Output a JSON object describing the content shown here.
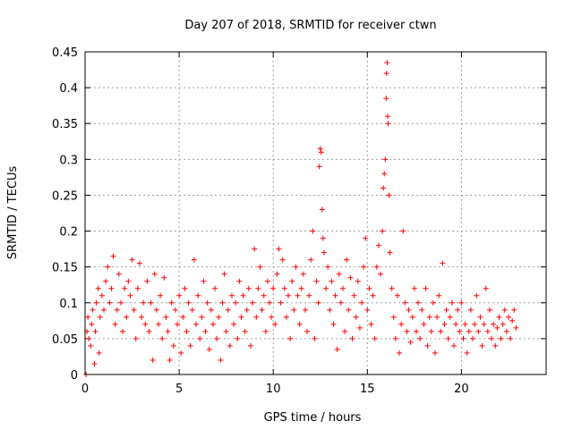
{
  "chart_data": {
    "type": "scatter",
    "title": "Day 207 of 2018, SRMTID for receiver ctwn",
    "xlabel": "GPS time / hours",
    "ylabel": "SRMTID / TECUs",
    "xlim": [
      0,
      24.5
    ],
    "ylim": [
      0,
      0.45
    ],
    "xticks": [
      0,
      5,
      10,
      15,
      20
    ],
    "xtick_labels": [
      "0",
      "5",
      "10",
      "15",
      "20"
    ],
    "yticks": [
      0,
      0.05,
      0.1,
      0.15,
      0.2,
      0.25,
      0.3,
      0.35,
      0.4,
      0.45
    ],
    "ytick_labels": [
      "0",
      "0.05",
      "0.1",
      "0.15",
      "0.2",
      "0.25",
      "0.3",
      "0.35",
      "0.4",
      "0.45"
    ],
    "grid": true,
    "marker": "plus",
    "color": "#ff0000",
    "series": [
      {
        "name": "SRMTID",
        "points": [
          [
            0.05,
            0.0
          ],
          [
            0.1,
            0.06
          ],
          [
            0.15,
            0.08
          ],
          [
            0.2,
            0.05
          ],
          [
            0.3,
            0.04
          ],
          [
            0.35,
            0.07
          ],
          [
            0.4,
            0.09
          ],
          [
            0.5,
            0.015
          ],
          [
            0.55,
            0.06
          ],
          [
            0.6,
            0.1
          ],
          [
            0.7,
            0.12
          ],
          [
            0.75,
            0.03
          ],
          [
            0.8,
            0.08
          ],
          [
            0.9,
            0.11
          ],
          [
            1.0,
            0.09
          ],
          [
            1.1,
            0.13
          ],
          [
            1.2,
            0.15
          ],
          [
            1.3,
            0.1
          ],
          [
            1.4,
            0.12
          ],
          [
            1.5,
            0.165
          ],
          [
            1.6,
            0.07
          ],
          [
            1.7,
            0.09
          ],
          [
            1.8,
            0.14
          ],
          [
            1.9,
            0.1
          ],
          [
            2.0,
            0.06
          ],
          [
            2.1,
            0.12
          ],
          [
            2.2,
            0.08
          ],
          [
            2.3,
            0.13
          ],
          [
            2.4,
            0.11
          ],
          [
            2.5,
            0.16
          ],
          [
            2.6,
            0.09
          ],
          [
            2.7,
            0.05
          ],
          [
            2.8,
            0.12
          ],
          [
            2.9,
            0.155
          ],
          [
            3.0,
            0.08
          ],
          [
            3.1,
            0.1
          ],
          [
            3.2,
            0.07
          ],
          [
            3.3,
            0.13
          ],
          [
            3.4,
            0.06
          ],
          [
            3.5,
            0.1
          ],
          [
            3.6,
            0.02
          ],
          [
            3.7,
            0.14
          ],
          [
            3.8,
            0.09
          ],
          [
            3.9,
            0.07
          ],
          [
            4.0,
            0.11
          ],
          [
            4.1,
            0.05
          ],
          [
            4.2,
            0.135
          ],
          [
            4.3,
            0.08
          ],
          [
            4.4,
            0.06
          ],
          [
            4.5,
            0.02
          ],
          [
            4.6,
            0.1
          ],
          [
            4.7,
            0.04
          ],
          [
            4.8,
            0.09
          ],
          [
            4.9,
            0.07
          ],
          [
            5.0,
            0.11
          ],
          [
            5.1,
            0.03
          ],
          [
            5.2,
            0.08
          ],
          [
            5.3,
            0.12
          ],
          [
            5.4,
            0.06
          ],
          [
            5.5,
            0.1
          ],
          [
            5.6,
            0.04
          ],
          [
            5.7,
            0.09
          ],
          [
            5.8,
            0.16
          ],
          [
            5.9,
            0.07
          ],
          [
            6.0,
            0.11
          ],
          [
            6.1,
            0.05
          ],
          [
            6.2,
            0.08
          ],
          [
            6.3,
            0.13
          ],
          [
            6.4,
            0.06
          ],
          [
            6.5,
            0.1
          ],
          [
            6.6,
            0.035
          ],
          [
            6.7,
            0.09
          ],
          [
            6.8,
            0.07
          ],
          [
            6.9,
            0.12
          ],
          [
            7.0,
            0.05
          ],
          [
            7.1,
            0.08
          ],
          [
            7.2,
            0.02
          ],
          [
            7.3,
            0.1
          ],
          [
            7.4,
            0.14
          ],
          [
            7.5,
            0.06
          ],
          [
            7.6,
            0.09
          ],
          [
            7.7,
            0.04
          ],
          [
            7.8,
            0.11
          ],
          [
            7.9,
            0.07
          ],
          [
            8.0,
            0.1
          ],
          [
            8.1,
            0.05
          ],
          [
            8.2,
            0.13
          ],
          [
            8.3,
            0.08
          ],
          [
            8.4,
            0.11
          ],
          [
            8.5,
            0.06
          ],
          [
            8.6,
            0.09
          ],
          [
            8.7,
            0.12
          ],
          [
            8.8,
            0.04
          ],
          [
            8.9,
            0.1
          ],
          [
            9.0,
            0.175
          ],
          [
            9.1,
            0.08
          ],
          [
            9.2,
            0.12
          ],
          [
            9.3,
            0.15
          ],
          [
            9.4,
            0.09
          ],
          [
            9.5,
            0.11
          ],
          [
            9.6,
            0.06
          ],
          [
            9.7,
            0.13
          ],
          [
            9.8,
            0.1
          ],
          [
            9.9,
            0.08
          ],
          [
            10.0,
            0.12
          ],
          [
            10.1,
            0.07
          ],
          [
            10.2,
            0.14
          ],
          [
            10.3,
            0.175
          ],
          [
            10.4,
            0.1
          ],
          [
            10.5,
            0.16
          ],
          [
            10.6,
            0.12
          ],
          [
            10.7,
            0.08
          ],
          [
            10.8,
            0.11
          ],
          [
            10.9,
            0.05
          ],
          [
            11.0,
            0.13
          ],
          [
            11.1,
            0.09
          ],
          [
            11.2,
            0.15
          ],
          [
            11.3,
            0.11
          ],
          [
            11.4,
            0.07
          ],
          [
            11.5,
            0.12
          ],
          [
            11.6,
            0.14
          ],
          [
            11.7,
            0.09
          ],
          [
            11.8,
            0.06
          ],
          [
            11.9,
            0.11
          ],
          [
            12.0,
            0.16
          ],
          [
            12.1,
            0.2
          ],
          [
            12.2,
            0.05
          ],
          [
            12.3,
            0.13
          ],
          [
            12.4,
            0.1
          ],
          [
            12.45,
            0.29
          ],
          [
            12.5,
            0.315
          ],
          [
            12.55,
            0.31
          ],
          [
            12.6,
            0.23
          ],
          [
            12.65,
            0.19
          ],
          [
            12.7,
            0.17
          ],
          [
            12.8,
            0.12
          ],
          [
            12.9,
            0.15
          ],
          [
            13.0,
            0.09
          ],
          [
            13.1,
            0.13
          ],
          [
            13.2,
            0.07
          ],
          [
            13.3,
            0.11
          ],
          [
            13.4,
            0.035
          ],
          [
            13.5,
            0.14
          ],
          [
            13.6,
            0.1
          ],
          [
            13.7,
            0.12
          ],
          [
            13.8,
            0.06
          ],
          [
            13.9,
            0.16
          ],
          [
            14.0,
            0.09
          ],
          [
            14.1,
            0.135
          ],
          [
            14.2,
            0.05
          ],
          [
            14.3,
            0.11
          ],
          [
            14.4,
            0.08
          ],
          [
            14.5,
            0.13
          ],
          [
            14.6,
            0.065
          ],
          [
            14.7,
            0.1
          ],
          [
            14.8,
            0.15
          ],
          [
            14.9,
            0.19
          ],
          [
            15.0,
            0.09
          ],
          [
            15.1,
            0.12
          ],
          [
            15.2,
            0.07
          ],
          [
            15.3,
            0.11
          ],
          [
            15.4,
            0.05
          ],
          [
            15.5,
            0.15
          ],
          [
            15.6,
            0.18
          ],
          [
            15.7,
            0.14
          ],
          [
            15.8,
            0.2
          ],
          [
            15.85,
            0.26
          ],
          [
            15.9,
            0.28
          ],
          [
            15.95,
            0.3
          ],
          [
            16.0,
            0.385
          ],
          [
            16.02,
            0.42
          ],
          [
            16.05,
            0.435
          ],
          [
            16.08,
            0.36
          ],
          [
            16.1,
            0.35
          ],
          [
            16.15,
            0.25
          ],
          [
            16.2,
            0.17
          ],
          [
            16.3,
            0.12
          ],
          [
            16.4,
            0.08
          ],
          [
            16.5,
            0.05
          ],
          [
            16.6,
            0.11
          ],
          [
            16.7,
            0.03
          ],
          [
            16.8,
            0.07
          ],
          [
            16.9,
            0.2
          ],
          [
            17.0,
            0.1
          ],
          [
            17.1,
            0.06
          ],
          [
            17.2,
            0.09
          ],
          [
            17.3,
            0.045
          ],
          [
            17.4,
            0.08
          ],
          [
            17.5,
            0.12
          ],
          [
            17.6,
            0.06
          ],
          [
            17.7,
            0.1
          ],
          [
            17.8,
            0.05
          ],
          [
            17.9,
            0.09
          ],
          [
            18.0,
            0.07
          ],
          [
            18.1,
            0.12
          ],
          [
            18.2,
            0.04
          ],
          [
            18.3,
            0.08
          ],
          [
            18.4,
            0.06
          ],
          [
            18.5,
            0.1
          ],
          [
            18.6,
            0.03
          ],
          [
            18.7,
            0.08
          ],
          [
            18.8,
            0.11
          ],
          [
            18.9,
            0.06
          ],
          [
            19.0,
            0.155
          ],
          [
            19.1,
            0.07
          ],
          [
            19.2,
            0.09
          ],
          [
            19.3,
            0.05
          ],
          [
            19.4,
            0.08
          ],
          [
            19.5,
            0.1
          ],
          [
            19.6,
            0.04
          ],
          [
            19.7,
            0.07
          ],
          [
            19.8,
            0.09
          ],
          [
            19.9,
            0.06
          ],
          [
            20.0,
            0.1
          ],
          [
            20.1,
            0.05
          ],
          [
            20.2,
            0.07
          ],
          [
            20.3,
            0.03
          ],
          [
            20.4,
            0.06
          ],
          [
            20.5,
            0.09
          ],
          [
            20.6,
            0.05
          ],
          [
            20.7,
            0.07
          ],
          [
            20.8,
            0.11
          ],
          [
            20.9,
            0.06
          ],
          [
            21.0,
            0.08
          ],
          [
            21.1,
            0.04
          ],
          [
            21.2,
            0.07
          ],
          [
            21.3,
            0.12
          ],
          [
            21.4,
            0.06
          ],
          [
            21.5,
            0.09
          ],
          [
            21.6,
            0.05
          ],
          [
            21.7,
            0.07
          ],
          [
            21.8,
            0.04
          ],
          [
            21.9,
            0.065
          ],
          [
            22.0,
            0.08
          ],
          [
            22.1,
            0.05
          ],
          [
            22.2,
            0.07
          ],
          [
            22.3,
            0.09
          ],
          [
            22.4,
            0.06
          ],
          [
            22.5,
            0.08
          ],
          [
            22.6,
            0.05
          ],
          [
            22.7,
            0.075
          ],
          [
            22.8,
            0.09
          ],
          [
            22.9,
            0.065
          ]
        ]
      }
    ]
  }
}
